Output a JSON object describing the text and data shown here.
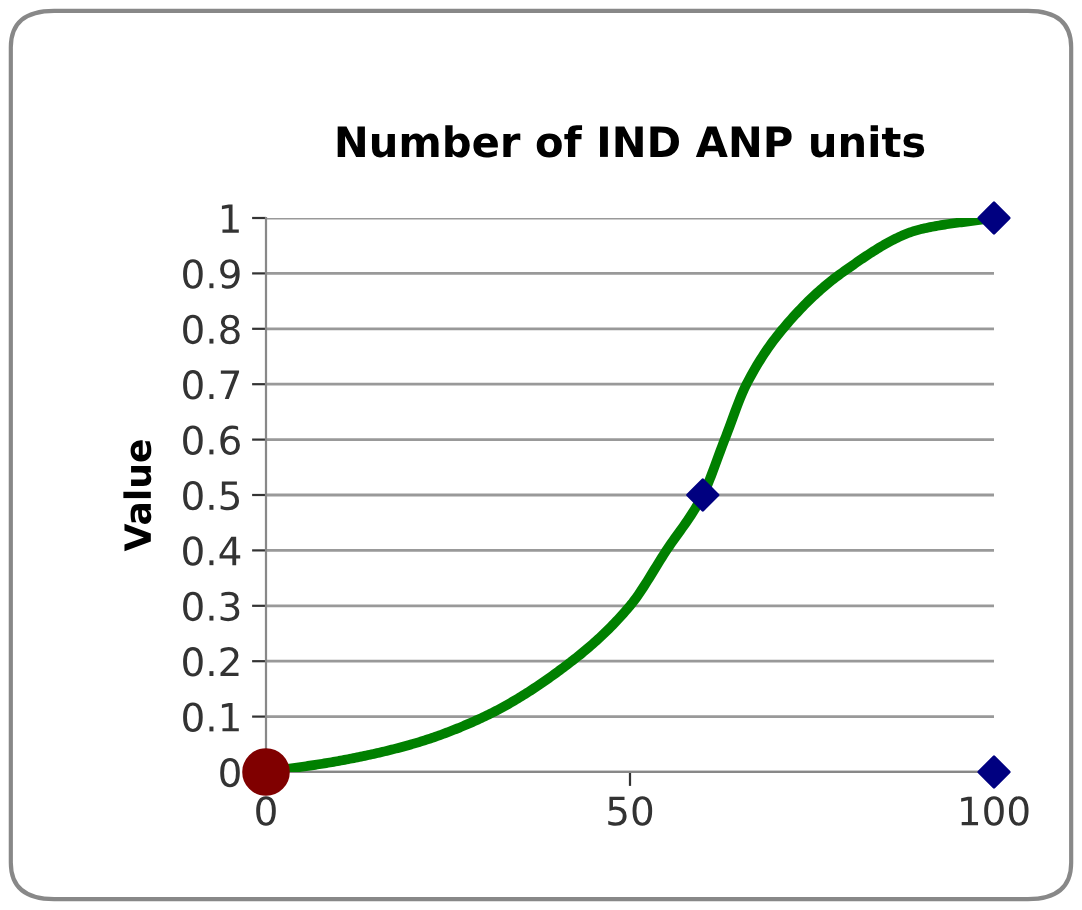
{
  "chart_data": {
    "type": "line",
    "title": "Number of IND ANP units",
    "ylabel": "Value",
    "series": [
      {
        "color": "#008000",
        "marker": "none",
        "x": [
          0,
          10,
          20,
          30,
          42,
          50,
          55,
          60,
          63,
          66,
          71,
          79,
          90,
          100
        ],
        "values": [
          0,
          0.02,
          0.05,
          0.1,
          0.2,
          0.3,
          0.4,
          0.5,
          0.6,
          0.7,
          0.8,
          0.9,
          0.98,
          1
        ]
      },
      {
        "type": "scatter",
        "color": "#000080",
        "marker": "diamond",
        "x": [
          60,
          100,
          100
        ],
        "values": [
          0.5,
          1,
          0
        ]
      },
      {
        "type": "scatter",
        "color": "#800000",
        "marker": "circle",
        "x": [
          0
        ],
        "values": [
          0
        ]
      }
    ],
    "xlim": [
      0,
      100
    ],
    "xticks": [
      0,
      50,
      100
    ],
    "ylim": [
      0,
      1
    ],
    "yticks": [
      {
        "value": 0,
        "label": "0"
      },
      0.1,
      0.2,
      0.3,
      0.4,
      0.5,
      0.6,
      0.7,
      0.8,
      0.9,
      {
        "value": 1,
        "label": "1"
      }
    ],
    "grid": "y",
    "legend": false
  }
}
